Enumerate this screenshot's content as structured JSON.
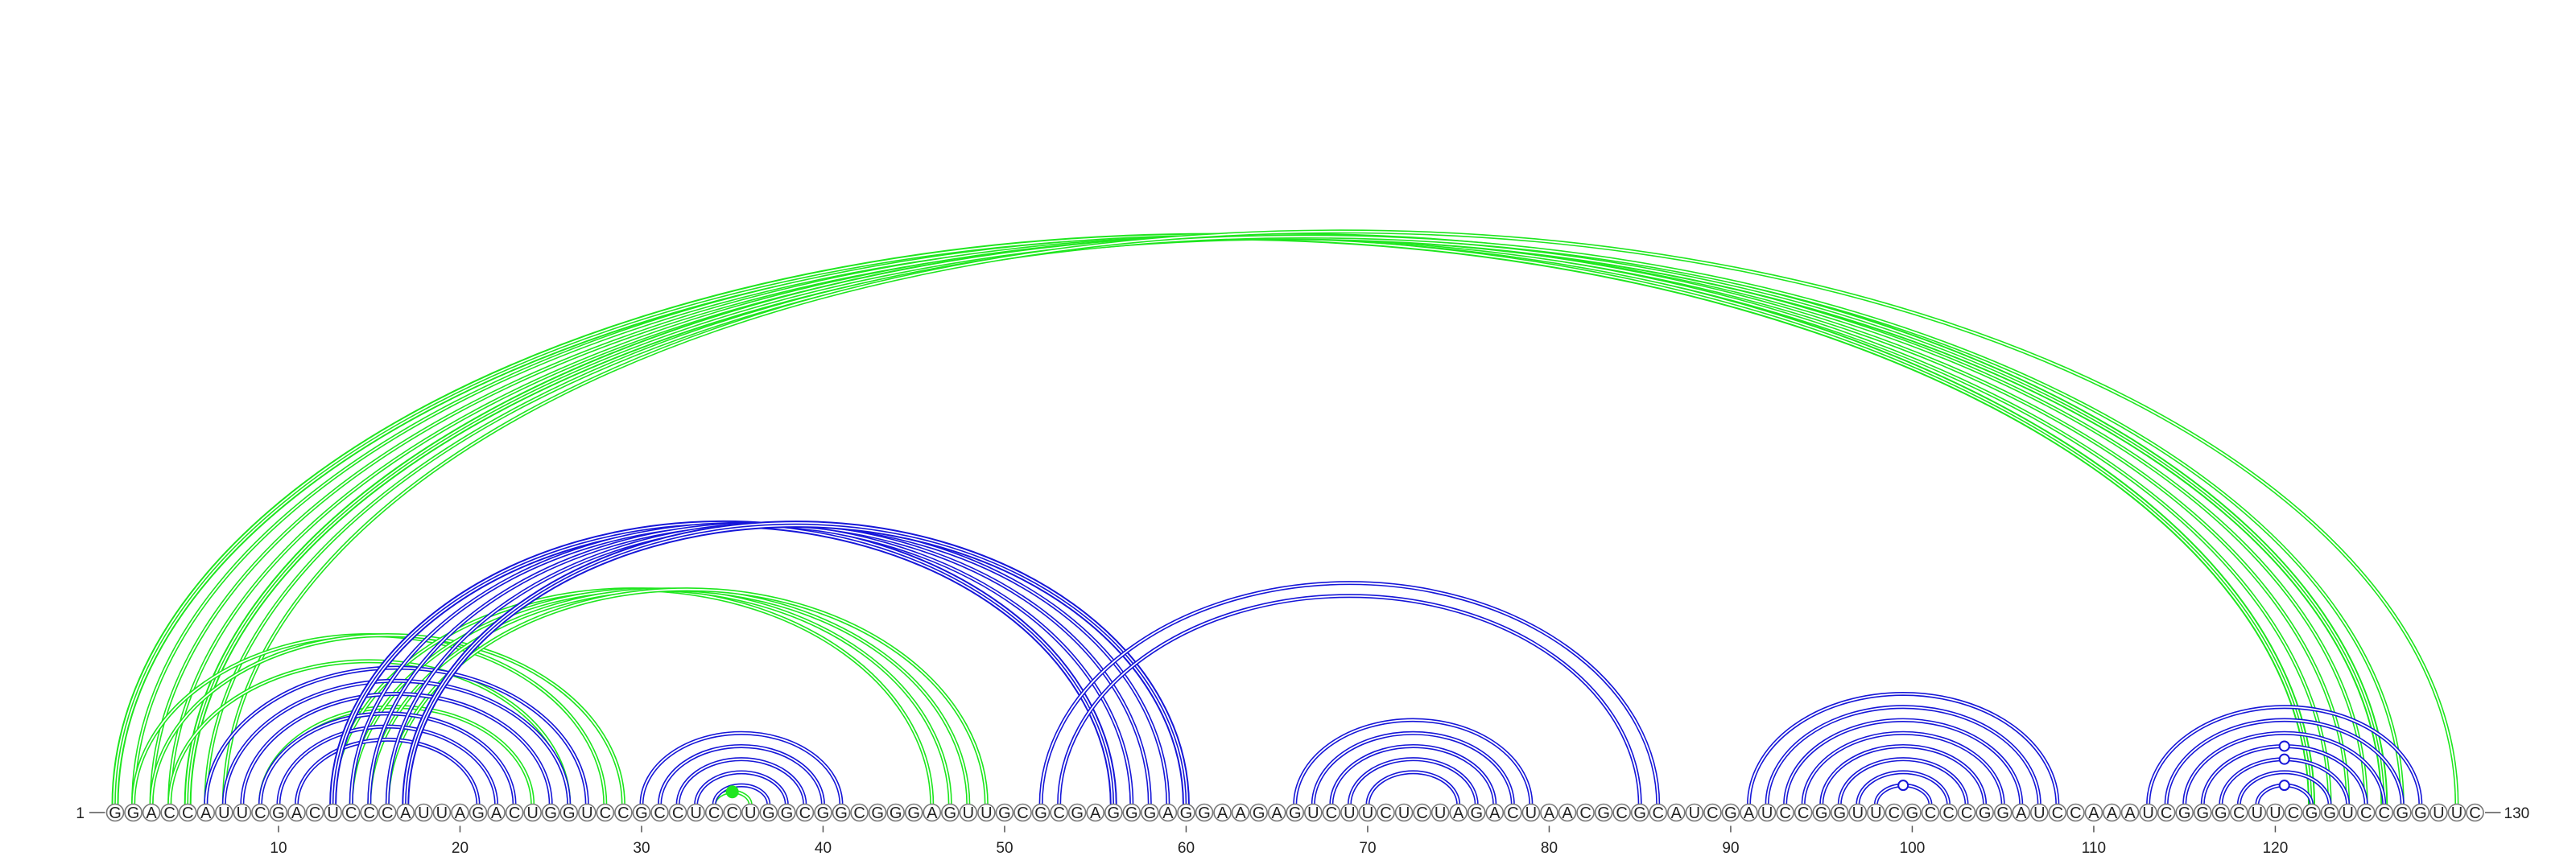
{
  "sequence": "GGACCAUUCGACUCCCAUUAGACUGGUCCGCCUCCUGGCGGCGGGAGUUGCGCGAGGGAGGAAGAGUCUUCUCUAGACUAACGCGCAUCGAUCCGGUUCGCCCGGAUCCAAAUCGGGCUUCGGUCCGGUUC",
  "start_label": "1",
  "end_label": "130",
  "ticks": [
    "10",
    "20",
    "30",
    "40",
    "50",
    "60",
    "70",
    "80",
    "90",
    "100",
    "110",
    "120"
  ],
  "colors": {
    "green": "#1ee61e",
    "blue": "#1616d8",
    "marker_open": "#1616d8",
    "marker_filled": "#1ee61e"
  },
  "arcs": [
    {
      "i": 1,
      "j": 122,
      "color": "green",
      "lines": 3
    },
    {
      "i": 2,
      "j": 123,
      "color": "green",
      "lines": 2
    },
    {
      "i": 3,
      "j": 124,
      "color": "green",
      "lines": 2
    },
    {
      "i": 4,
      "j": 125,
      "color": "green",
      "lines": 2
    },
    {
      "i": 5,
      "j": 126,
      "color": "green",
      "lines": 3
    },
    {
      "i": 6,
      "j": 127,
      "color": "green",
      "lines": 2
    },
    {
      "i": 7,
      "j": 130,
      "color": "green",
      "lines": 2
    },
    {
      "i": 2,
      "j": 28,
      "color": "green",
      "lines": 2
    },
    {
      "i": 3,
      "j": 29,
      "color": "green",
      "lines": 2
    },
    {
      "i": 4,
      "j": 26,
      "color": "green",
      "lines": 2
    },
    {
      "i": 9,
      "j": 24,
      "color": "green",
      "lines": 2
    },
    {
      "i": 13,
      "j": 46,
      "color": "green",
      "lines": 2
    },
    {
      "i": 14,
      "j": 47,
      "color": "green",
      "lines": 2
    },
    {
      "i": 15,
      "j": 48,
      "color": "green",
      "lines": 2
    },
    {
      "i": 16,
      "j": 49,
      "color": "green",
      "lines": 2
    },
    {
      "i": 34,
      "j": 36,
      "color": "green",
      "lines": 2
    },
    {
      "i": 6,
      "j": 27,
      "color": "blue",
      "lines": 2
    },
    {
      "i": 7,
      "j": 26,
      "color": "blue",
      "lines": 2
    },
    {
      "i": 8,
      "j": 25,
      "color": "blue",
      "lines": 2
    },
    {
      "i": 9,
      "j": 23,
      "color": "blue",
      "lines": 2
    },
    {
      "i": 10,
      "j": 22,
      "color": "blue",
      "lines": 2
    },
    {
      "i": 11,
      "j": 21,
      "color": "blue",
      "lines": 2
    },
    {
      "i": 13,
      "j": 56,
      "color": "blue",
      "lines": 3
    },
    {
      "i": 14,
      "j": 57,
      "color": "blue",
      "lines": 2
    },
    {
      "i": 15,
      "j": 58,
      "color": "blue",
      "lines": 2
    },
    {
      "i": 16,
      "j": 59,
      "color": "blue",
      "lines": 2
    },
    {
      "i": 17,
      "j": 60,
      "color": "blue",
      "lines": 3
    },
    {
      "i": 30,
      "j": 41,
      "color": "blue",
      "lines": 2
    },
    {
      "i": 31,
      "j": 40,
      "color": "blue",
      "lines": 2
    },
    {
      "i": 32,
      "j": 39,
      "color": "blue",
      "lines": 2
    },
    {
      "i": 33,
      "j": 38,
      "color": "blue",
      "lines": 2
    },
    {
      "i": 34,
      "j": 37,
      "color": "blue",
      "lines": 2
    },
    {
      "i": 52,
      "j": 86,
      "color": "blue",
      "lines": 2
    },
    {
      "i": 53,
      "j": 85,
      "color": "blue",
      "lines": 2
    },
    {
      "i": 66,
      "j": 79,
      "color": "blue",
      "lines": 2
    },
    {
      "i": 67,
      "j": 78,
      "color": "blue",
      "lines": 2
    },
    {
      "i": 68,
      "j": 77,
      "color": "blue",
      "lines": 2
    },
    {
      "i": 69,
      "j": 76,
      "color": "blue",
      "lines": 2
    },
    {
      "i": 70,
      "j": 75,
      "color": "blue",
      "lines": 2
    },
    {
      "i": 91,
      "j": 108,
      "color": "blue",
      "lines": 2
    },
    {
      "i": 92,
      "j": 107,
      "color": "blue",
      "lines": 2
    },
    {
      "i": 93,
      "j": 106,
      "color": "blue",
      "lines": 2
    },
    {
      "i": 94,
      "j": 105,
      "color": "blue",
      "lines": 2
    },
    {
      "i": 95,
      "j": 104,
      "color": "blue",
      "lines": 2
    },
    {
      "i": 96,
      "j": 103,
      "color": "blue",
      "lines": 2
    },
    {
      "i": 97,
      "j": 102,
      "color": "blue",
      "lines": 2
    },
    {
      "i": 98,
      "j": 101,
      "color": "blue",
      "lines": 2
    },
    {
      "i": 113,
      "j": 128,
      "color": "blue",
      "lines": 2
    },
    {
      "i": 114,
      "j": 127,
      "color": "blue",
      "lines": 2
    },
    {
      "i": 115,
      "j": 126,
      "color": "blue",
      "lines": 2
    },
    {
      "i": 116,
      "j": 125,
      "color": "blue",
      "lines": 2
    },
    {
      "i": 117,
      "j": 124,
      "color": "blue",
      "lines": 2
    },
    {
      "i": 118,
      "j": 123,
      "color": "blue",
      "lines": 2
    },
    {
      "i": 119,
      "j": 122,
      "color": "blue",
      "lines": 2
    }
  ],
  "markers": [
    {
      "i": 98,
      "j": 101,
      "style": "open"
    },
    {
      "i": 117,
      "j": 124,
      "style": "open"
    },
    {
      "i": 116,
      "j": 125,
      "style": "open"
    },
    {
      "i": 119,
      "j": 122,
      "style": "open"
    },
    {
      "i": 34,
      "j": 36,
      "style": "filled"
    }
  ]
}
